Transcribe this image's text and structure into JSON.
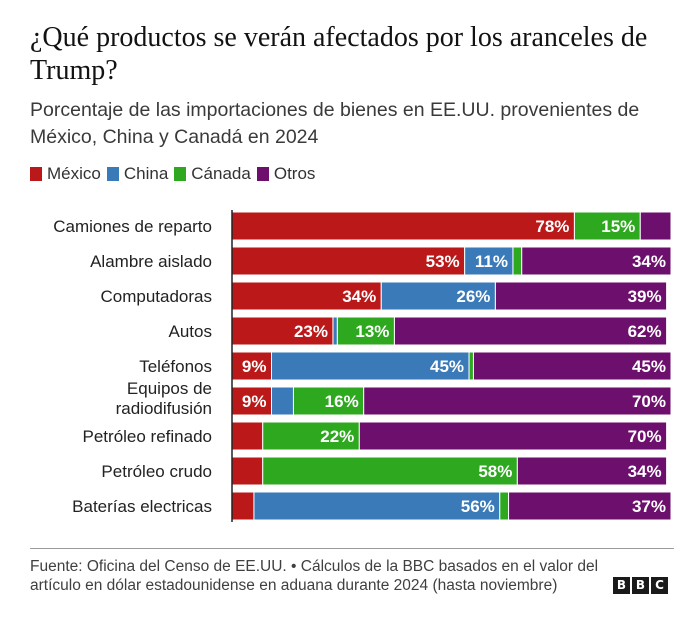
{
  "title": "¿Qué productos se verán afectados por los aranceles de Trump?",
  "subtitle": "Porcentaje de las importaciones de bienes en EE.UU. provenientes de México, China y Canadá en 2024",
  "legend": [
    {
      "label": "México",
      "color": "#bb1919"
    },
    {
      "label": "China",
      "color": "#3a7ab9"
    },
    {
      "label": "Cánada",
      "color": "#2da81f"
    },
    {
      "label": "Otros",
      "color": "#6d0f6d"
    }
  ],
  "chart_data": {
    "type": "bar",
    "orientation": "horizontal",
    "stacked": true,
    "xlim": [
      0,
      100
    ],
    "categories": [
      "Camiones de reparto",
      "Alambre aislado",
      "Computadoras",
      "Autos",
      "Teléfonos",
      "Equipos de radiodifusión",
      "Petróleo refinado",
      "Petróleo crudo",
      "Baterías electricas"
    ],
    "series": [
      {
        "name": "México",
        "color": "#bb1919",
        "values": [
          78,
          53,
          34,
          23,
          9,
          9,
          7,
          7,
          5
        ]
      },
      {
        "name": "China",
        "color": "#3a7ab9",
        "values": [
          0,
          11,
          26,
          1,
          45,
          5,
          0,
          0,
          56
        ]
      },
      {
        "name": "Cánada",
        "color": "#2da81f",
        "values": [
          15,
          2,
          0,
          13,
          1,
          16,
          22,
          58,
          2
        ]
      },
      {
        "name": "Otros",
        "color": "#6d0f6d",
        "values": [
          7,
          34,
          39,
          62,
          45,
          70,
          70,
          34,
          37
        ]
      }
    ],
    "data_labels": [
      [
        "78%",
        "",
        "15%",
        ""
      ],
      [
        "53%",
        "11%",
        "",
        "34%"
      ],
      [
        "34%",
        "26%",
        "",
        "39%"
      ],
      [
        "23%",
        "",
        "13%",
        "62%"
      ],
      [
        "9%",
        "45%",
        "",
        "45%"
      ],
      [
        "9%",
        "",
        "16%",
        "70%"
      ],
      [
        "",
        "",
        "22%",
        "70%"
      ],
      [
        "",
        "",
        "58%",
        "34%"
      ],
      [
        "",
        "56%",
        "",
        "37%"
      ]
    ]
  },
  "footer": {
    "source": "Fuente: Oficina del Censo de EE.UU. • Cálculos de la BBC basados en el valor del artículo en dólar estadounidense en aduana durante 2024 (hasta noviembre)",
    "logo": [
      "B",
      "B",
      "C"
    ]
  }
}
